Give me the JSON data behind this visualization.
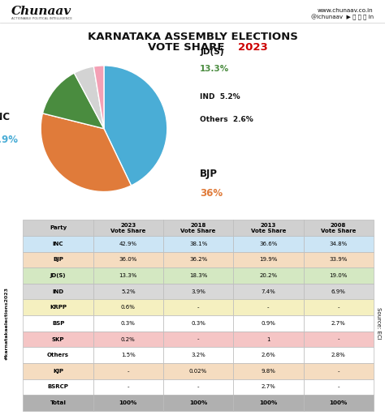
{
  "title_line1": "KARNATAKA ASSEMBLY ELECTIONS",
  "title_line2_black": "VOTE SHARE ",
  "title_line2_red": "2023",
  "pie_values": [
    42.9,
    36.0,
    13.3,
    5.2,
    2.6
  ],
  "pie_colors": [
    "#4aadd6",
    "#e07b3a",
    "#4a8c3f",
    "#d3d3d3",
    "#f4a0b5"
  ],
  "table_headers": [
    "Party",
    "2023\nVote Share",
    "2018\nVote Share",
    "2013\nVote Share",
    "2008\nVote Share"
  ],
  "table_rows": [
    [
      "INC",
      "42.9%",
      "38.1%",
      "36.6%",
      "34.8%"
    ],
    [
      "BJP",
      "36.0%",
      "36.2%",
      "19.9%",
      "33.9%"
    ],
    [
      "JD(S)",
      "13.3%",
      "18.3%",
      "20.2%",
      "19.0%"
    ],
    [
      "IND",
      "5.2%",
      "3.9%",
      "7.4%",
      "6.9%"
    ],
    [
      "KRPP",
      "0.6%",
      "-",
      "-",
      "-"
    ],
    [
      "BSP",
      "0.3%",
      "0.3%",
      "0.9%",
      "2.7%"
    ],
    [
      "SKP",
      "0.2%",
      "-",
      "1",
      "-"
    ],
    [
      "Others",
      "1.5%",
      "3.2%",
      "2.6%",
      "2.8%"
    ],
    [
      "KJP",
      "-",
      "0.02%",
      "9.8%",
      "-"
    ],
    [
      "BSRCP",
      "-",
      "-",
      "2.7%",
      "-"
    ],
    [
      "Total",
      "100%",
      "100%",
      "100%",
      "100%"
    ]
  ],
  "row_colors": [
    [
      "#cce5f5",
      "#cce5f5",
      "#cce5f5",
      "#cce5f5",
      "#cce5f5"
    ],
    [
      "#f5dcc0",
      "#f5dcc0",
      "#f5dcc0",
      "#f5dcc0",
      "#f5dcc0"
    ],
    [
      "#d4e8c2",
      "#d4e8c2",
      "#d4e8c2",
      "#d4e8c2",
      "#d4e8c2"
    ],
    [
      "#d8d8d8",
      "#d8d8d8",
      "#d8d8d8",
      "#d8d8d8",
      "#d8d8d8"
    ],
    [
      "#f5f0c0",
      "#f5f0c0",
      "#f5f0c0",
      "#f5f0c0",
      "#f5f0c0"
    ],
    [
      "#ffffff",
      "#ffffff",
      "#ffffff",
      "#ffffff",
      "#ffffff"
    ],
    [
      "#f5c5c5",
      "#f5c5c5",
      "#f5c5c5",
      "#f5c5c5",
      "#f5c5c5"
    ],
    [
      "#ffffff",
      "#ffffff",
      "#ffffff",
      "#ffffff",
      "#ffffff"
    ],
    [
      "#f5dcc0",
      "#f5dcc0",
      "#f5dcc0",
      "#f5dcc0",
      "#f5dcc0"
    ],
    [
      "#ffffff",
      "#ffffff",
      "#ffffff",
      "#ffffff",
      "#ffffff"
    ],
    [
      "#b0b0b0",
      "#b0b0b0",
      "#b0b0b0",
      "#b0b0b0",
      "#b0b0b0"
    ]
  ],
  "header_color": "#d0d0d0",
  "bg_color": "#ffffff",
  "hashtag_text": "#karnatakaelections2023",
  "source_text": "Source: ECI"
}
